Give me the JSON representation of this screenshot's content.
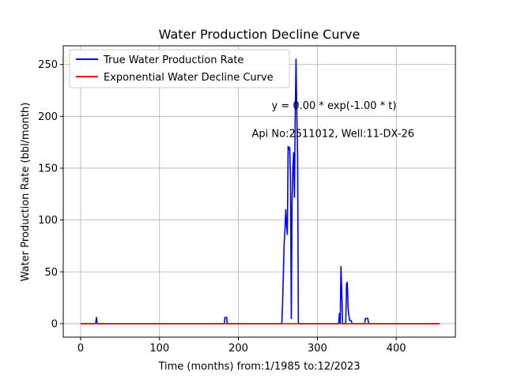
{
  "chart_data": {
    "type": "line",
    "title": "Water Production Decline Curve",
    "xlabel": "Time (months) from:1/1985 to:12/2023",
    "ylabel": "Water Production Rate (bbl/month)",
    "xlim": [
      -22,
      475
    ],
    "ylim": [
      -13,
      268
    ],
    "x_ticks": [
      0,
      100,
      200,
      300,
      400
    ],
    "y_ticks": [
      0,
      50,
      100,
      150,
      200,
      250
    ],
    "grid": true,
    "legend_position": "upper-left",
    "annotations": [
      {
        "text": "y = 0.00 * exp(-1.00 * t)",
        "x": 242,
        "y": 207
      },
      {
        "text": "Api No:2511012, Well:11-DX-26",
        "x": 217,
        "y": 180
      }
    ],
    "series": [
      {
        "name": "True Water Production Rate",
        "color": "#0000ff",
        "points": [
          [
            0,
            0
          ],
          [
            19,
            0
          ],
          [
            20,
            6
          ],
          [
            21,
            0
          ],
          [
            182,
            0
          ],
          [
            183,
            6
          ],
          [
            185,
            6
          ],
          [
            186,
            0
          ],
          [
            255,
            0
          ],
          [
            256,
            20
          ],
          [
            257,
            50
          ],
          [
            258,
            78
          ],
          [
            259,
            90
          ],
          [
            260,
            110
          ],
          [
            261,
            95
          ],
          [
            262,
            86
          ],
          [
            263,
            171
          ],
          [
            264,
            168
          ],
          [
            265,
            170
          ],
          [
            266,
            140
          ],
          [
            267,
            5
          ],
          [
            268,
            118
          ],
          [
            269,
            150
          ],
          [
            270,
            165
          ],
          [
            271,
            122
          ],
          [
            272,
            200
          ],
          [
            273,
            255
          ],
          [
            274,
            205
          ],
          [
            275,
            160
          ],
          [
            276,
            0
          ],
          [
            327,
            0
          ],
          [
            328,
            10
          ],
          [
            329,
            0
          ],
          [
            330,
            55
          ],
          [
            331,
            30
          ],
          [
            332,
            0
          ],
          [
            336,
            0
          ],
          [
            337,
            38
          ],
          [
            338,
            40
          ],
          [
            339,
            15
          ],
          [
            340,
            8
          ],
          [
            341,
            3
          ],
          [
            343,
            3
          ],
          [
            344,
            0
          ],
          [
            360,
            0
          ],
          [
            361,
            5
          ],
          [
            364,
            5
          ],
          [
            365,
            0
          ],
          [
            455,
            0
          ]
        ]
      },
      {
        "name": "Exponential Water Decline Curve",
        "color": "#ff0000",
        "points": [
          [
            0,
            0
          ],
          [
            455,
            0
          ]
        ]
      }
    ]
  }
}
